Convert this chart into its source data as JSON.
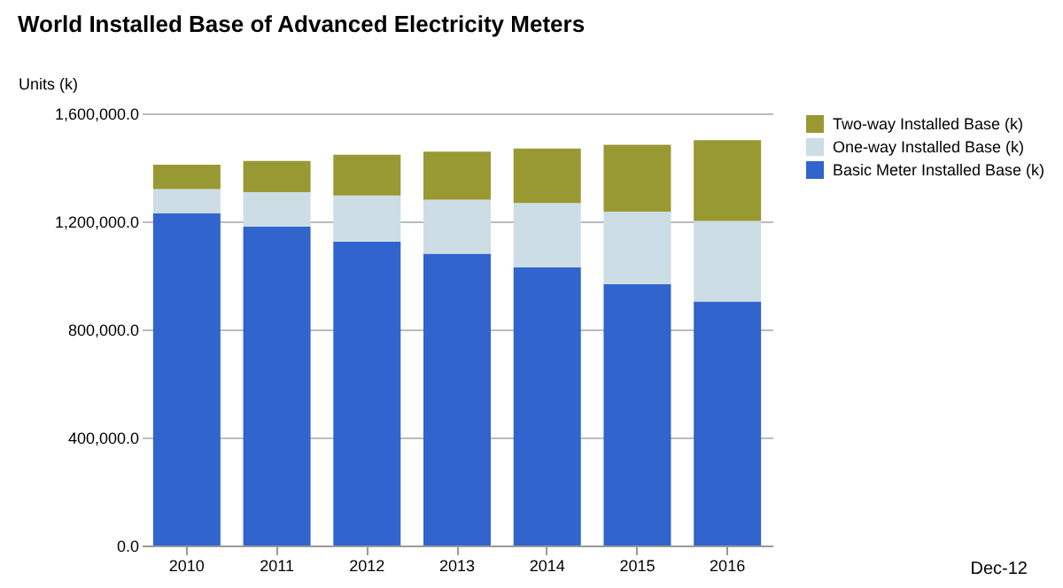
{
  "chart_data": {
    "type": "bar",
    "title": "World Installed Base of Advanced Electricity Meters",
    "ylabel": "Units (k)",
    "categories": [
      "2010",
      "2011",
      "2012",
      "2013",
      "2014",
      "2015",
      "2016"
    ],
    "stacked": true,
    "series": [
      {
        "name": "Basic Meter Installed Base (k)",
        "color": "#3164cc",
        "values": [
          1230000,
          1180000,
          1125000,
          1080000,
          1030000,
          967000,
          903000
        ]
      },
      {
        "name": "One-way Installed Base (k)",
        "color": "#ccdde6",
        "values": [
          90000,
          128000,
          171000,
          200000,
          238000,
          269000,
          299000
        ]
      },
      {
        "name": "Two-way Installed Base (k)",
        "color": "#999933",
        "values": [
          90000,
          116000,
          151000,
          178000,
          202000,
          248000,
          299000
        ]
      }
    ],
    "ylim": [
      0,
      1600000
    ],
    "yticks": [
      {
        "value": 0,
        "label": "0.0"
      },
      {
        "value": 400000,
        "label": "400,000.0"
      },
      {
        "value": 800000,
        "label": "800,000.0"
      },
      {
        "value": 1200000,
        "label": "1,200,000.0"
      },
      {
        "value": 1600000,
        "label": "1,600,000.0"
      }
    ],
    "grid": "y",
    "legend": "top right",
    "annotations": [
      "Dec-12"
    ]
  }
}
